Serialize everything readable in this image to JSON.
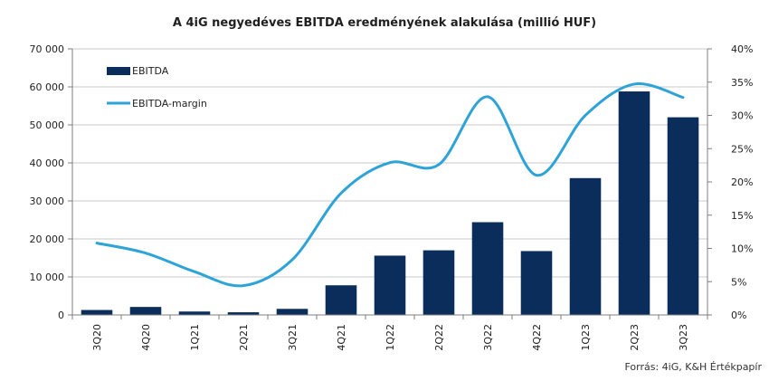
{
  "chart_data": {
    "type": "bar+line",
    "title": "A 4iG negyedéves EBITDA eredményének alakulása (millió HUF)",
    "categories": [
      "3Q20",
      "4Q20",
      "1Q21",
      "2Q21",
      "3Q21",
      "4Q21",
      "1Q22",
      "2Q22",
      "3Q22",
      "4Q22",
      "1Q23",
      "2Q23",
      "3Q23"
    ],
    "series": [
      {
        "name": "EBITDA",
        "type": "bar",
        "axis": "left",
        "color": "#0a2d5c",
        "values": [
          1300,
          2100,
          900,
          700,
          1600,
          7800,
          15600,
          17000,
          24400,
          16800,
          36000,
          58800,
          52000
        ]
      },
      {
        "name": "EBITDA-margin",
        "type": "line",
        "axis": "right",
        "color": "#2ea3d8",
        "values": [
          10.8,
          9.3,
          6.5,
          4.4,
          8.3,
          18.3,
          22.9,
          22.6,
          32.8,
          21.0,
          30.0,
          34.7,
          32.7
        ]
      }
    ],
    "y_left": {
      "min": 0,
      "max": 70000,
      "ticks": [
        0,
        10000,
        20000,
        30000,
        40000,
        50000,
        60000,
        70000
      ],
      "tick_labels": [
        "0",
        "10 000",
        "20 000",
        "30 000",
        "40 000",
        "50 000",
        "60 000",
        "70 000"
      ]
    },
    "y_right": {
      "min": 0,
      "max": 40,
      "ticks": [
        0,
        5,
        10,
        15,
        20,
        25,
        30,
        35,
        40
      ],
      "tick_labels": [
        "0%",
        "5%",
        "10%",
        "15%",
        "20%",
        "25%",
        "30%",
        "35%",
        "40%"
      ]
    },
    "grid": true,
    "legend_position": "top-left",
    "source": "Forrás: 4iG, K&H Értékpapír"
  }
}
